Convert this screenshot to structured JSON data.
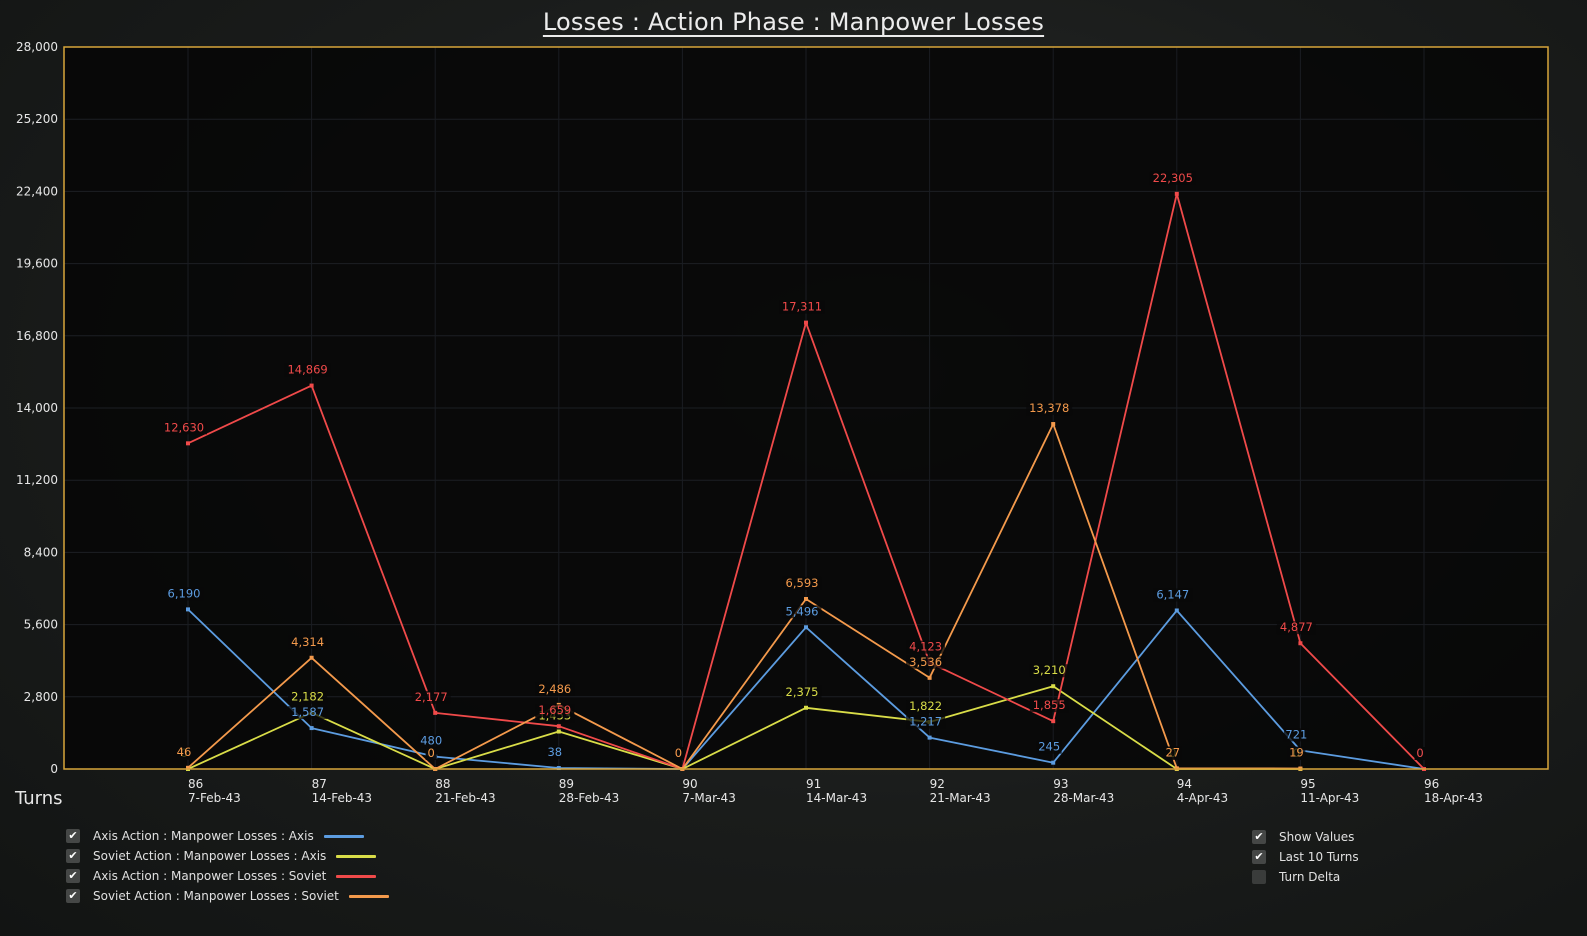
{
  "title": "Losses : Action Phase : Manpower Losses",
  "x_axis_label": "Turns",
  "legend": [
    {
      "label": "Axis Action : Manpower Losses : Axis",
      "color": "#5c9ce0",
      "checked": true
    },
    {
      "label": "Soviet Action : Manpower Losses : Axis",
      "color": "#d9dd48",
      "checked": true
    },
    {
      "label": "Axis Action : Manpower Losses : Soviet",
      "color": "#f04a4a",
      "checked": true
    },
    {
      "label": "Soviet Action : Manpower Losses : Soviet",
      "color": "#f49a4c",
      "checked": true
    }
  ],
  "options": [
    {
      "label": "Show Values",
      "checked": true
    },
    {
      "label": "Last 10 Turns",
      "checked": true
    },
    {
      "label": "Turn Delta",
      "checked": false
    }
  ],
  "check_glyph": "✔",
  "chart_data": {
    "type": "line",
    "title": "Losses : Action Phase : Manpower Losses",
    "xlabel": "Turns",
    "ylabel": "",
    "ylim": [
      0,
      28000
    ],
    "yticks": [
      0,
      2800,
      5600,
      8400,
      11200,
      14000,
      16800,
      19600,
      22400,
      25200,
      28000
    ],
    "ytick_labels": [
      "0",
      "2,800",
      "5,600",
      "8,400",
      "11,200",
      "14,000",
      "16,800",
      "19,600",
      "22,400",
      "25,200",
      "28,000"
    ],
    "categories": [
      "86",
      "87",
      "88",
      "89",
      "90",
      "91",
      "92",
      "93",
      "94",
      "95",
      "96"
    ],
    "dates": [
      "7-Feb-43",
      "14-Feb-43",
      "21-Feb-43",
      "28-Feb-43",
      "7-Mar-43",
      "14-Mar-43",
      "21-Mar-43",
      "28-Mar-43",
      "4-Apr-43",
      "11-Apr-43",
      "18-Apr-43"
    ],
    "grid": true,
    "series": [
      {
        "name": "Axis Action : Manpower Losses : Axis",
        "color": "#5c9ce0",
        "values": [
          6190,
          1587,
          480,
          38,
          0,
          5496,
          1217,
          245,
          6147,
          721,
          0
        ]
      },
      {
        "name": "Soviet Action : Manpower Losses : Axis",
        "color": "#d9dd48",
        "values": [
          0,
          2182,
          0,
          1453,
          0,
          2375,
          1822,
          3210,
          0,
          0,
          null
        ]
      },
      {
        "name": "Axis Action : Manpower Losses : Soviet",
        "color": "#f04a4a",
        "values": [
          12630,
          14869,
          2177,
          1659,
          0,
          17311,
          4123,
          1855,
          22305,
          4877,
          0
        ]
      },
      {
        "name": "Soviet Action : Manpower Losses : Soviet",
        "color": "#f49a4c",
        "values": [
          46,
          4314,
          0,
          2486,
          0,
          6593,
          3536,
          13378,
          27,
          19,
          null
        ]
      }
    ]
  }
}
